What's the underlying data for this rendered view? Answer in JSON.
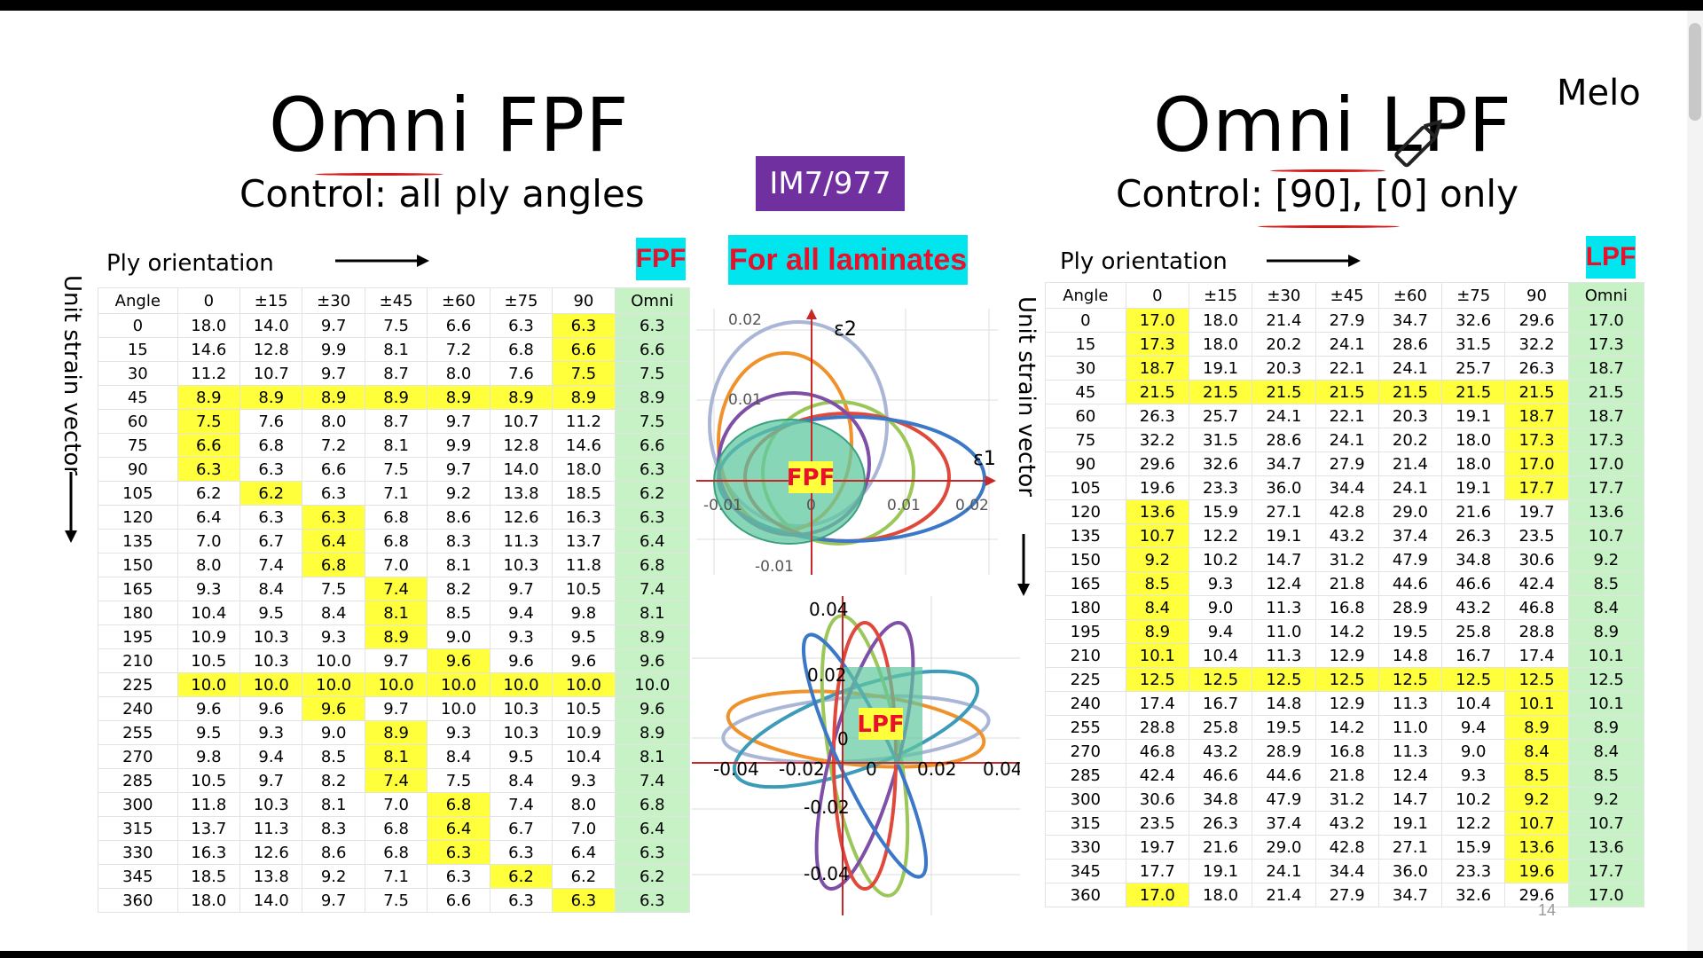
{
  "left": {
    "title": "Omni FPF",
    "control": "Control: all ply angles",
    "ply_label": "Ply orientation",
    "axis_label": "Unit strain vector",
    "badge": "FPF",
    "columns": [
      "Angle",
      "0",
      "±15",
      "±30",
      "±45",
      "±60",
      "±75",
      "90",
      "Omni"
    ],
    "rows": [
      [
        "0",
        "18.0",
        "14.0",
        "9.7",
        "7.5",
        "6.6",
        "6.3",
        "6.3",
        "6.3"
      ],
      [
        "15",
        "14.6",
        "12.8",
        "9.9",
        "8.1",
        "7.2",
        "6.8",
        "6.6",
        "6.6"
      ],
      [
        "30",
        "11.2",
        "10.7",
        "9.7",
        "8.7",
        "8.0",
        "7.6",
        "7.5",
        "7.5"
      ],
      [
        "45",
        "8.9",
        "8.9",
        "8.9",
        "8.9",
        "8.9",
        "8.9",
        "8.9",
        "8.9"
      ],
      [
        "60",
        "7.5",
        "7.6",
        "8.0",
        "8.7",
        "9.7",
        "10.7",
        "11.2",
        "7.5"
      ],
      [
        "75",
        "6.6",
        "6.8",
        "7.2",
        "8.1",
        "9.9",
        "12.8",
        "14.6",
        "6.6"
      ],
      [
        "90",
        "6.3",
        "6.3",
        "6.6",
        "7.5",
        "9.7",
        "14.0",
        "18.0",
        "6.3"
      ],
      [
        "105",
        "6.2",
        "6.2",
        "6.3",
        "7.1",
        "9.2",
        "13.8",
        "18.5",
        "6.2"
      ],
      [
        "120",
        "6.4",
        "6.3",
        "6.3",
        "6.8",
        "8.6",
        "12.6",
        "16.3",
        "6.3"
      ],
      [
        "135",
        "7.0",
        "6.7",
        "6.4",
        "6.8",
        "8.3",
        "11.3",
        "13.7",
        "6.4"
      ],
      [
        "150",
        "8.0",
        "7.4",
        "6.8",
        "7.0",
        "8.1",
        "10.3",
        "11.8",
        "6.8"
      ],
      [
        "165",
        "9.3",
        "8.4",
        "7.5",
        "7.4",
        "8.2",
        "9.7",
        "10.5",
        "7.4"
      ],
      [
        "180",
        "10.4",
        "9.5",
        "8.4",
        "8.1",
        "8.5",
        "9.4",
        "9.8",
        "8.1"
      ],
      [
        "195",
        "10.9",
        "10.3",
        "9.3",
        "8.9",
        "9.0",
        "9.3",
        "9.5",
        "8.9"
      ],
      [
        "210",
        "10.5",
        "10.3",
        "10.0",
        "9.7",
        "9.6",
        "9.6",
        "9.6",
        "9.6"
      ],
      [
        "225",
        "10.0",
        "10.0",
        "10.0",
        "10.0",
        "10.0",
        "10.0",
        "10.0",
        "10.0"
      ],
      [
        "240",
        "9.6",
        "9.6",
        "9.6",
        "9.7",
        "10.0",
        "10.3",
        "10.5",
        "9.6"
      ],
      [
        "255",
        "9.5",
        "9.3",
        "9.0",
        "8.9",
        "9.3",
        "10.3",
        "10.9",
        "8.9"
      ],
      [
        "270",
        "9.8",
        "9.4",
        "8.5",
        "8.1",
        "8.4",
        "9.5",
        "10.4",
        "8.1"
      ],
      [
        "285",
        "10.5",
        "9.7",
        "8.2",
        "7.4",
        "7.5",
        "8.4",
        "9.3",
        "7.4"
      ],
      [
        "300",
        "11.8",
        "10.3",
        "8.1",
        "7.0",
        "6.8",
        "7.4",
        "8.0",
        "6.8"
      ],
      [
        "315",
        "13.7",
        "11.3",
        "8.3",
        "6.8",
        "6.4",
        "6.7",
        "7.0",
        "6.4"
      ],
      [
        "330",
        "16.3",
        "12.6",
        "8.6",
        "6.8",
        "6.3",
        "6.3",
        "6.4",
        "6.3"
      ],
      [
        "345",
        "18.5",
        "13.8",
        "9.2",
        "7.1",
        "6.3",
        "6.2",
        "6.2",
        "6.2"
      ],
      [
        "360",
        "18.0",
        "14.0",
        "9.7",
        "7.5",
        "6.6",
        "6.3",
        "6.3",
        "6.3"
      ]
    ],
    "highlight": [
      [
        0,
        7
      ],
      [
        1,
        7
      ],
      [
        2,
        7
      ],
      [
        3,
        1
      ],
      [
        3,
        2
      ],
      [
        3,
        3
      ],
      [
        3,
        4
      ],
      [
        3,
        5
      ],
      [
        3,
        6
      ],
      [
        3,
        7
      ],
      [
        4,
        1
      ],
      [
        5,
        1
      ],
      [
        6,
        1
      ],
      [
        7,
        2
      ],
      [
        8,
        3
      ],
      [
        9,
        3
      ],
      [
        10,
        3
      ],
      [
        11,
        4
      ],
      [
        12,
        4
      ],
      [
        13,
        4
      ],
      [
        14,
        5
      ],
      [
        15,
        1
      ],
      [
        15,
        2
      ],
      [
        15,
        3
      ],
      [
        15,
        4
      ],
      [
        15,
        5
      ],
      [
        15,
        6
      ],
      [
        15,
        7
      ],
      [
        16,
        3
      ],
      [
        17,
        4
      ],
      [
        18,
        4
      ],
      [
        19,
        4
      ],
      [
        20,
        5
      ],
      [
        21,
        5
      ],
      [
        22,
        5
      ],
      [
        23,
        6
      ],
      [
        24,
        7
      ]
    ]
  },
  "right": {
    "title": "Omni LPF",
    "control": "Control: [90], [0] only",
    "ply_label": "Ply orientation",
    "axis_label": "Unit strain vector",
    "badge": "LPF",
    "columns": [
      "Angle",
      "0",
      "±15",
      "±30",
      "±45",
      "±60",
      "±75",
      "90",
      "Omni"
    ],
    "rows": [
      [
        "0",
        "17.0",
        "18.0",
        "21.4",
        "27.9",
        "34.7",
        "32.6",
        "29.6",
        "17.0"
      ],
      [
        "15",
        "17.3",
        "18.0",
        "20.2",
        "24.1",
        "28.6",
        "31.5",
        "32.2",
        "17.3"
      ],
      [
        "30",
        "18.7",
        "19.1",
        "20.3",
        "22.1",
        "24.1",
        "25.7",
        "26.3",
        "18.7"
      ],
      [
        "45",
        "21.5",
        "21.5",
        "21.5",
        "21.5",
        "21.5",
        "21.5",
        "21.5",
        "21.5"
      ],
      [
        "60",
        "26.3",
        "25.7",
        "24.1",
        "22.1",
        "20.3",
        "19.1",
        "18.7",
        "18.7"
      ],
      [
        "75",
        "32.2",
        "31.5",
        "28.6",
        "24.1",
        "20.2",
        "18.0",
        "17.3",
        "17.3"
      ],
      [
        "90",
        "29.6",
        "32.6",
        "34.7",
        "27.9",
        "21.4",
        "18.0",
        "17.0",
        "17.0"
      ],
      [
        "105",
        "19.6",
        "23.3",
        "36.0",
        "34.4",
        "24.1",
        "19.1",
        "17.7",
        "17.7"
      ],
      [
        "120",
        "13.6",
        "15.9",
        "27.1",
        "42.8",
        "29.0",
        "21.6",
        "19.7",
        "13.6"
      ],
      [
        "135",
        "10.7",
        "12.2",
        "19.1",
        "43.2",
        "37.4",
        "26.3",
        "23.5",
        "10.7"
      ],
      [
        "150",
        "9.2",
        "10.2",
        "14.7",
        "31.2",
        "47.9",
        "34.8",
        "30.6",
        "9.2"
      ],
      [
        "165",
        "8.5",
        "9.3",
        "12.4",
        "21.8",
        "44.6",
        "46.6",
        "42.4",
        "8.5"
      ],
      [
        "180",
        "8.4",
        "9.0",
        "11.3",
        "16.8",
        "28.9",
        "43.2",
        "46.8",
        "8.4"
      ],
      [
        "195",
        "8.9",
        "9.4",
        "11.0",
        "14.2",
        "19.5",
        "25.8",
        "28.8",
        "8.9"
      ],
      [
        "210",
        "10.1",
        "10.4",
        "11.3",
        "12.9",
        "14.8",
        "16.7",
        "17.4",
        "10.1"
      ],
      [
        "225",
        "12.5",
        "12.5",
        "12.5",
        "12.5",
        "12.5",
        "12.5",
        "12.5",
        "12.5"
      ],
      [
        "240",
        "17.4",
        "16.7",
        "14.8",
        "12.9",
        "11.3",
        "10.4",
        "10.1",
        "10.1"
      ],
      [
        "255",
        "28.8",
        "25.8",
        "19.5",
        "14.2",
        "11.0",
        "9.4",
        "8.9",
        "8.9"
      ],
      [
        "270",
        "46.8",
        "43.2",
        "28.9",
        "16.8",
        "11.3",
        "9.0",
        "8.4",
        "8.4"
      ],
      [
        "285",
        "42.4",
        "46.6",
        "44.6",
        "21.8",
        "12.4",
        "9.3",
        "8.5",
        "8.5"
      ],
      [
        "300",
        "30.6",
        "34.8",
        "47.9",
        "31.2",
        "14.7",
        "10.2",
        "9.2",
        "9.2"
      ],
      [
        "315",
        "23.5",
        "26.3",
        "37.4",
        "43.2",
        "19.1",
        "12.2",
        "10.7",
        "10.7"
      ],
      [
        "330",
        "19.7",
        "21.6",
        "29.0",
        "42.8",
        "27.1",
        "15.9",
        "13.6",
        "13.6"
      ],
      [
        "345",
        "17.7",
        "19.1",
        "24.1",
        "34.4",
        "36.0",
        "23.3",
        "19.6",
        "17.7"
      ],
      [
        "360",
        "17.0",
        "18.0",
        "21.4",
        "27.9",
        "34.7",
        "32.6",
        "29.6",
        "17.0"
      ]
    ],
    "highlight": [
      [
        0,
        1
      ],
      [
        1,
        1
      ],
      [
        2,
        1
      ],
      [
        3,
        1
      ],
      [
        3,
        2
      ],
      [
        3,
        3
      ],
      [
        3,
        4
      ],
      [
        3,
        5
      ],
      [
        3,
        6
      ],
      [
        3,
        7
      ],
      [
        4,
        7
      ],
      [
        5,
        7
      ],
      [
        6,
        7
      ],
      [
        7,
        7
      ],
      [
        8,
        1
      ],
      [
        9,
        1
      ],
      [
        10,
        1
      ],
      [
        11,
        1
      ],
      [
        12,
        1
      ],
      [
        13,
        1
      ],
      [
        14,
        1
      ],
      [
        15,
        1
      ],
      [
        15,
        2
      ],
      [
        15,
        3
      ],
      [
        15,
        4
      ],
      [
        15,
        5
      ],
      [
        15,
        6
      ],
      [
        15,
        7
      ],
      [
        16,
        7
      ],
      [
        17,
        7
      ],
      [
        18,
        7
      ],
      [
        19,
        7
      ],
      [
        20,
        7
      ],
      [
        21,
        7
      ],
      [
        22,
        7
      ],
      [
        23,
        7
      ],
      [
        24,
        1
      ]
    ]
  },
  "center": {
    "material_badge": "IM7/977",
    "laminates_badge": "For all laminates",
    "fpf_plot": {
      "label": "FPF",
      "axis_x": "ε1",
      "axis_y": "ε2",
      "x_ticks": [
        "-0.01",
        "0",
        "0.01",
        "0.02"
      ],
      "y_ticks": [
        "0.02",
        "0.01",
        "-0.01"
      ]
    },
    "lpf_plot": {
      "label": "LPF",
      "x_ticks": [
        "-0.04",
        "-0.02",
        "0",
        "0.02",
        "0.04"
      ],
      "y_ticks": [
        "0.04",
        "0.02",
        "0",
        "-0.02",
        "-0.04"
      ]
    }
  },
  "author": "Melo",
  "page_number": "14",
  "colors": {
    "highlight": "#FFFF3C",
    "omni": "#C6F2C6",
    "purple": "#7030A0",
    "cyan": "#00E5EE",
    "red": "#E8102A",
    "envelope": "#60C8A0"
  }
}
